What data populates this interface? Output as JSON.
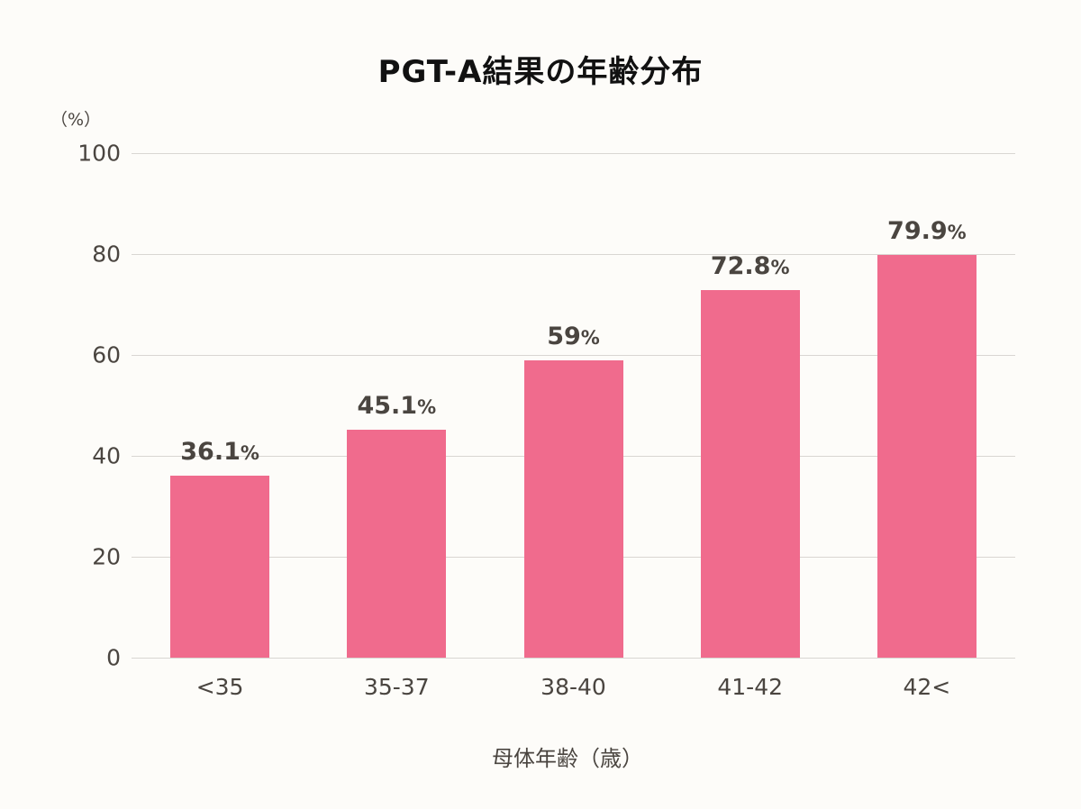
{
  "chart_data": {
    "type": "bar",
    "title": "PGT-A結果の年齢分布",
    "xlabel": "母体年齢（歳）",
    "ylabel": "（%）",
    "categories": [
      "<35",
      "35-37",
      "38-40",
      "41-42",
      "42<"
    ],
    "values": [
      36.1,
      45.1,
      59,
      72.8,
      79.9
    ],
    "data_labels": [
      "36.1",
      "45.1",
      "59",
      "72.8",
      "79.9"
    ],
    "data_label_suffix": "%",
    "ylim": [
      0,
      100
    ],
    "yticks": [
      0,
      20,
      40,
      60,
      80,
      100
    ],
    "grid": true,
    "legend": null,
    "colors": {
      "bar": "#f06b8d",
      "grid": "#d9d6d2",
      "text": "#4a4540",
      "title": "#111111",
      "background": "#fdfcf9"
    }
  }
}
